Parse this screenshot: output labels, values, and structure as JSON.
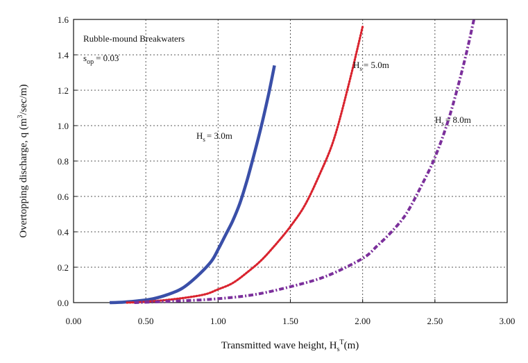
{
  "chart_data": {
    "type": "line",
    "title": "Rubble-mound Breakwaters",
    "subtitle_text": "= 0.03",
    "subtitle_symbol": "s",
    "subtitle_sub": "op",
    "xlabel": "Transmitted wave height, H",
    "xlabel_sub": "s",
    "xlabel_sup": "T",
    "xlabel_tail": "(m)",
    "ylabel": "Overtopping discharge, q (m",
    "ylabel_sup": "3",
    "ylabel_tail": "/sec/m)",
    "xlim": [
      0,
      3
    ],
    "ylim": [
      0,
      1.6
    ],
    "xticks": [
      "0.00",
      "0.50",
      "1.00",
      "1.50",
      "2.00",
      "2.50",
      "3.00"
    ],
    "yticks": [
      "0.0",
      "0.2",
      "0.4",
      "0.6",
      "0.8",
      "1.0",
      "1.2",
      "1.4",
      "1.6"
    ],
    "grid": true,
    "series": [
      {
        "name": "H",
        "label_sub": "s",
        "label_value": "= 3.0m",
        "color": "#3a4fa8",
        "style": "solid",
        "x": [
          0.25,
          0.35,
          0.45,
          0.55,
          0.65,
          0.75,
          0.85,
          0.95,
          1.0,
          1.05,
          1.1,
          1.15,
          1.2,
          1.25,
          1.3,
          1.35,
          1.39
        ],
        "y": [
          0.0,
          0.003,
          0.01,
          0.022,
          0.045,
          0.08,
          0.145,
          0.23,
          0.3,
          0.38,
          0.46,
          0.56,
          0.69,
          0.84,
          1.0,
          1.18,
          1.34
        ]
      },
      {
        "name": "H",
        "label_sub": "s",
        "label_value": "= 5.0m",
        "color": "#d9232e",
        "style": "dotted",
        "x": [
          0.37,
          0.5,
          0.7,
          0.9,
          1.0,
          1.1,
          1.2,
          1.3,
          1.4,
          1.5,
          1.6,
          1.7,
          1.8,
          1.9,
          2.0
        ],
        "y": [
          0.0,
          0.005,
          0.02,
          0.045,
          0.075,
          0.11,
          0.17,
          0.24,
          0.33,
          0.43,
          0.55,
          0.72,
          0.92,
          1.22,
          1.56
        ]
      },
      {
        "name": "H",
        "label_sub": "s",
        "label_value": "= 8.0m",
        "color": "#7b2f9b",
        "style": "dashdot",
        "x": [
          0.42,
          0.75,
          1.0,
          1.25,
          1.5,
          1.75,
          2.0,
          2.1,
          2.2,
          2.3,
          2.4,
          2.5,
          2.6,
          2.7,
          2.77
        ],
        "y": [
          0.0,
          0.01,
          0.022,
          0.045,
          0.09,
          0.15,
          0.25,
          0.32,
          0.4,
          0.5,
          0.65,
          0.82,
          1.05,
          1.35,
          1.6
        ]
      }
    ]
  }
}
